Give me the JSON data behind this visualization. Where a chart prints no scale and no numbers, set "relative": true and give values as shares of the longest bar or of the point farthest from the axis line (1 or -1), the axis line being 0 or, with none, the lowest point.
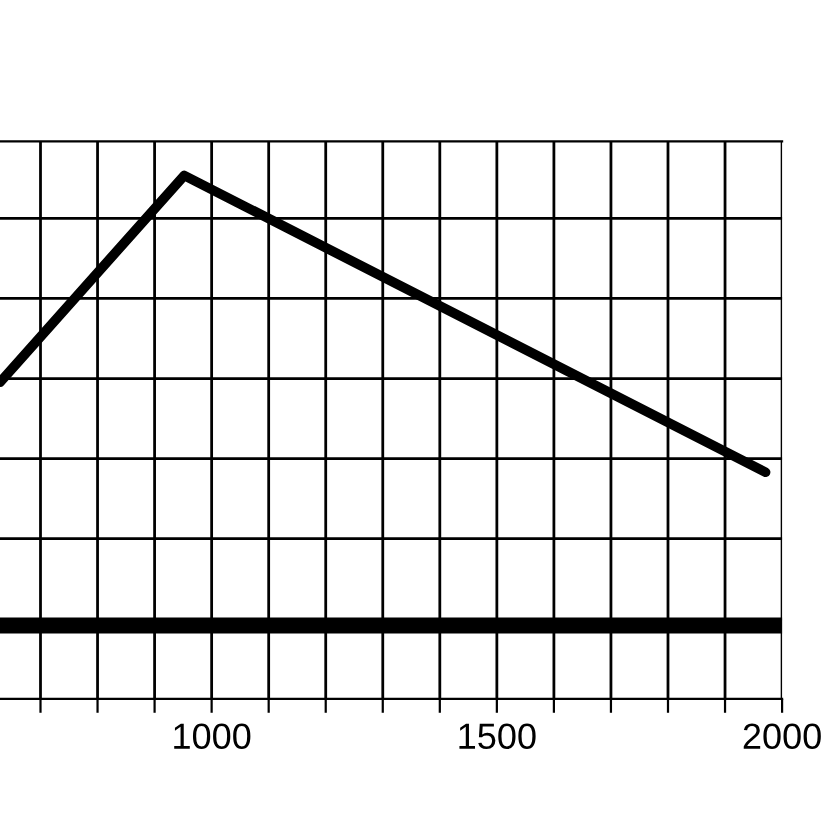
{
  "chart_data": {
    "type": "line",
    "relative": true,
    "series": [
      {
        "color": "#000000",
        "x": [
          629,
          952,
          1971
        ],
        "values": [
          0.605,
          1.0,
          0.433
        ]
      }
    ],
    "xlim": [
      629,
      2000
    ],
    "xticks": [
      {
        "value": 700,
        "label": null
      },
      {
        "value": 800,
        "label": null
      },
      {
        "value": 900,
        "label": null
      },
      1000,
      {
        "value": 1100,
        "label": null
      },
      {
        "value": 1200,
        "label": null
      },
      {
        "value": 1300,
        "label": null
      },
      {
        "value": 1400,
        "label": null
      },
      1500,
      {
        "value": 1600,
        "label": null
      },
      {
        "value": 1700,
        "label": null
      },
      {
        "value": 1800,
        "label": null
      },
      {
        "value": 1900,
        "label": null
      },
      2000
    ],
    "ref_lines": [
      {
        "axis": "y",
        "value": 0.138,
        "color": "#000000"
      }
    ],
    "grid": true,
    "marker": "none",
    "line_style": "solid"
  }
}
